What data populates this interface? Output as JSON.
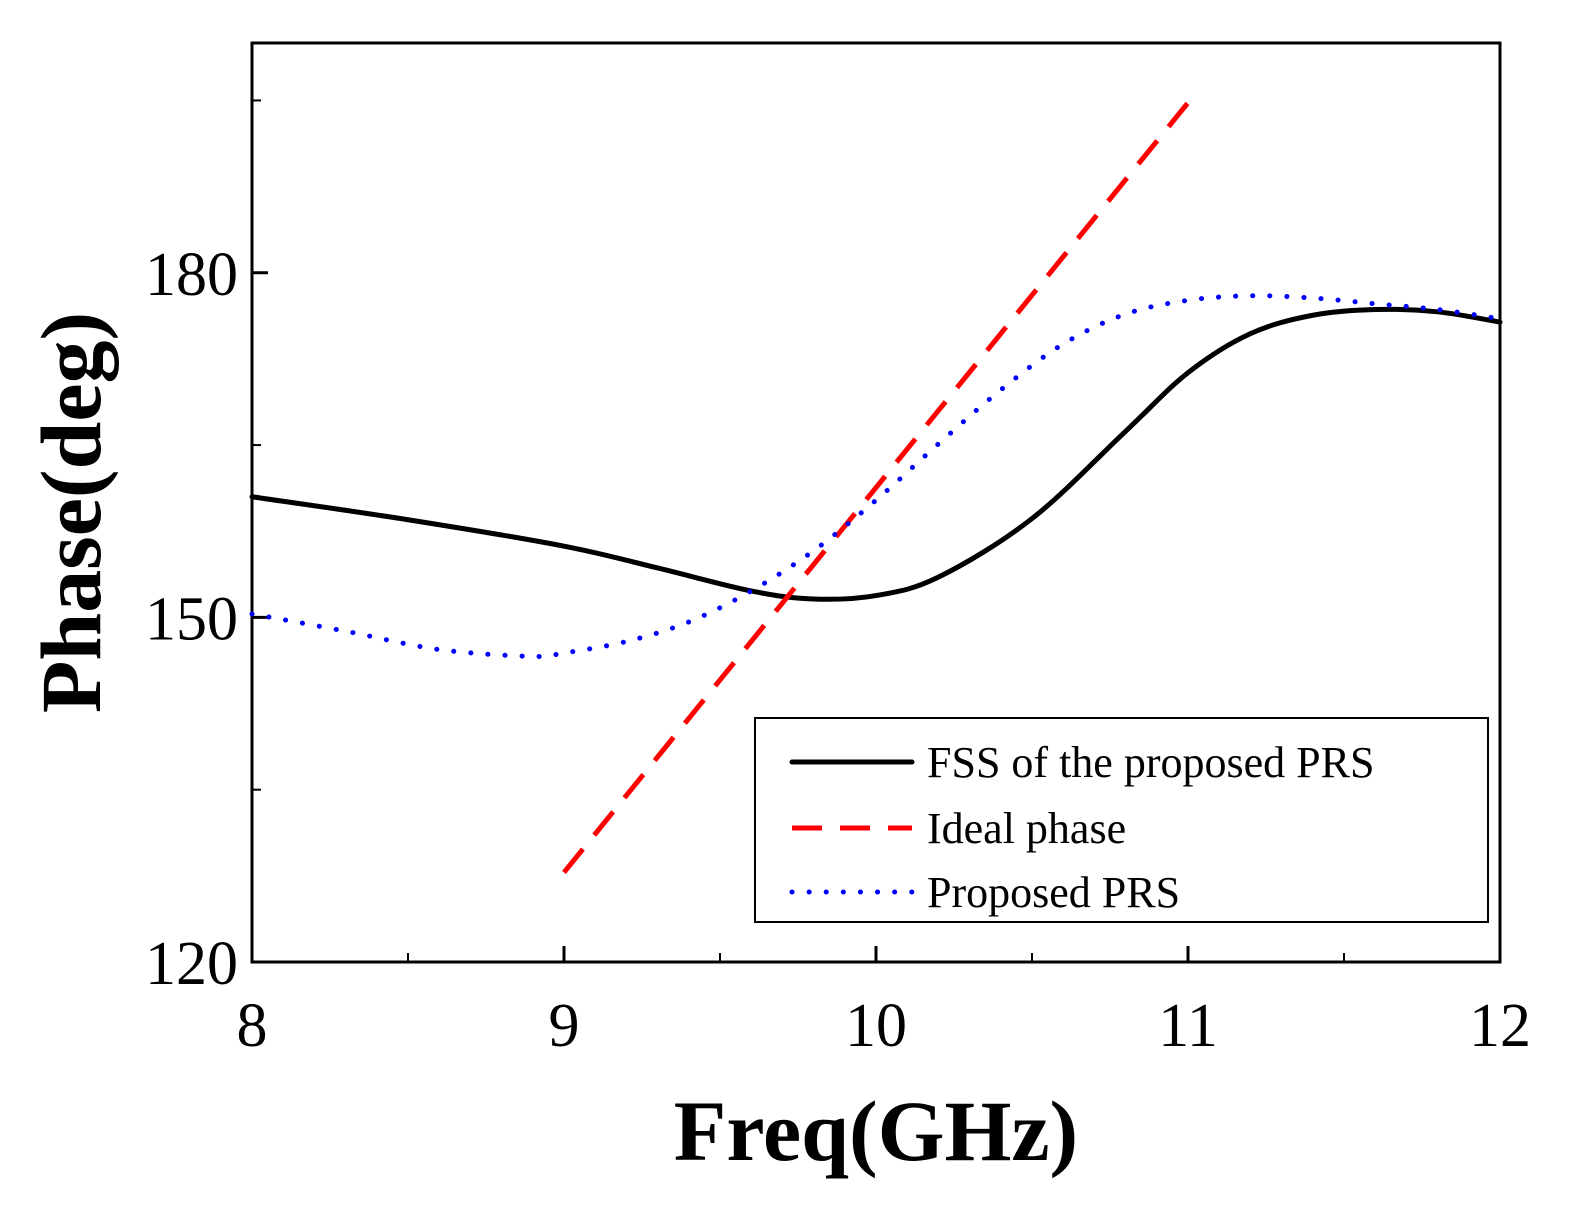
{
  "chart_data": {
    "type": "line",
    "title": "",
    "xlabel": "Freq(GHz)",
    "ylabel": "Phase(deg)",
    "xlim": [
      8,
      12
    ],
    "ylim": [
      120,
      200
    ],
    "x_ticks": [
      8,
      9,
      10,
      11,
      12
    ],
    "x_tick_labels": [
      "8",
      "9",
      "10",
      "11",
      "12"
    ],
    "x_minor_ticks": [
      8.5,
      9.5,
      10.5,
      11.5
    ],
    "y_ticks": [
      120,
      150,
      180
    ],
    "y_tick_labels": [
      "120",
      "150",
      "180"
    ],
    "y_minor_ticks": [
      135,
      165,
      195
    ],
    "grid": false,
    "legend_position": "bottom-right",
    "series": [
      {
        "name": "FSS of the proposed PRS",
        "color": "#000000",
        "style": "solid",
        "x": [
          8.0,
          8.5,
          9.0,
          9.3,
          9.6,
          9.8,
          10.0,
          10.2,
          10.5,
          10.8,
          11.0,
          11.2,
          11.4,
          11.6,
          11.8,
          12.0
        ],
        "y": [
          160.5,
          158.5,
          156.2,
          154.3,
          152.3,
          151.6,
          151.9,
          153.5,
          158.6,
          166.2,
          171.3,
          174.7,
          176.3,
          176.8,
          176.6,
          175.7
        ]
      },
      {
        "name": "Ideal phase",
        "color": "#ff0000",
        "style": "dashed",
        "x": [
          9.0,
          11.0
        ],
        "y": [
          127.8,
          194.8
        ]
      },
      {
        "name": "Proposed PRS",
        "color": "#0000ff",
        "style": "dotted",
        "x": [
          8.0,
          8.3,
          8.6,
          8.9,
          9.0,
          9.2,
          9.4,
          9.6,
          9.8,
          10.0,
          10.2,
          10.4,
          10.6,
          10.8,
          11.0,
          11.2,
          11.4,
          11.6,
          11.8,
          12.0
        ],
        "y": [
          150.3,
          148.8,
          147.2,
          146.6,
          146.9,
          147.9,
          149.6,
          152.3,
          155.8,
          160.2,
          165.1,
          169.8,
          173.8,
          176.4,
          177.6,
          178.0,
          177.8,
          177.3,
          176.8,
          176.0
        ]
      }
    ]
  }
}
